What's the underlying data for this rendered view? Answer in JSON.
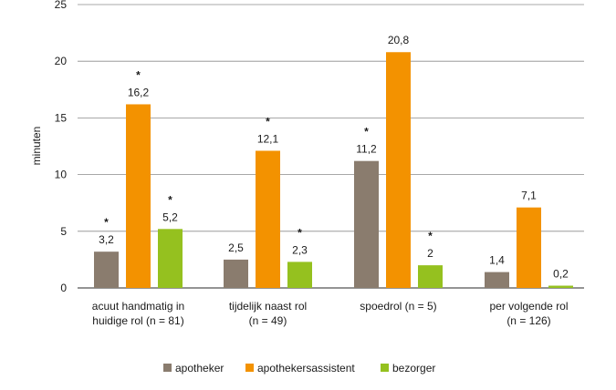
{
  "chart_data": {
    "type": "bar",
    "title": "",
    "xlabel": "",
    "ylabel": "minuten",
    "ylim": [
      0,
      25
    ],
    "yticks": [
      0,
      5,
      10,
      15,
      20,
      25
    ],
    "ytick_labels": [
      "0",
      "5",
      "10",
      "15",
      "20",
      "25"
    ],
    "grid": true,
    "legend_position": "bottom",
    "categories": [
      [
        "acuut handmatig in",
        "huidige rol (n = 81)"
      ],
      [
        "tijdelijk naast rol",
        "(n = 49)"
      ],
      [
        "spoedrol (n = 5)"
      ],
      [
        "per volgende rol",
        "(n = 126)"
      ]
    ],
    "series": [
      {
        "name": "apotheker",
        "color": "#8a7c6e",
        "values": [
          3.2,
          2.5,
          11.2,
          1.4
        ],
        "labels": [
          "3,2",
          "2,5",
          "11,2",
          "1,4"
        ],
        "significant": [
          true,
          false,
          true,
          false
        ]
      },
      {
        "name": "apothekersassistent",
        "color": "#f39200",
        "values": [
          16.2,
          12.1,
          20.8,
          7.1
        ],
        "labels": [
          "16,2",
          "12,1",
          "20,8",
          "7,1"
        ],
        "significant": [
          true,
          true,
          false,
          false
        ]
      },
      {
        "name": "bezorger",
        "color": "#95c11f",
        "values": [
          5.2,
          2.3,
          2,
          0.2
        ],
        "labels": [
          "5,2",
          "2,3",
          "2",
          "0,2"
        ],
        "significant": [
          true,
          true,
          true,
          false
        ]
      }
    ],
    "significance_marker": "*"
  }
}
